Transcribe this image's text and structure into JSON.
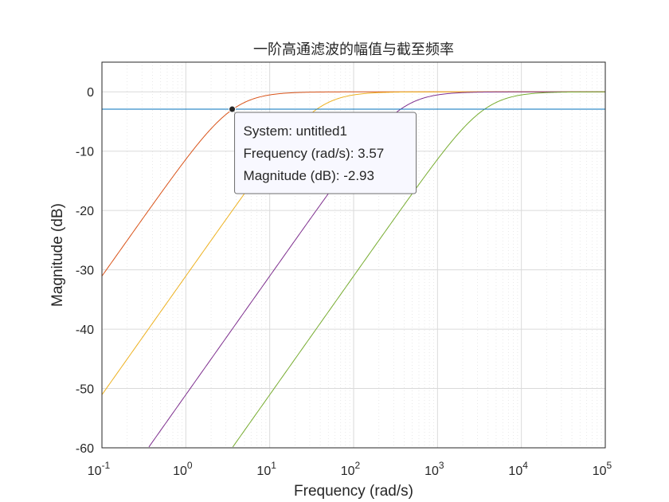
{
  "chart_data": {
    "type": "line",
    "title": "一阶高通滤波的幅值与截至频率",
    "xlabel": "Frequency  (rad/s)",
    "ylabel": "Magnitude (dB)",
    "xscale": "log",
    "xlim": [
      0.1,
      100000
    ],
    "ylim": [
      -60,
      5
    ],
    "x_ticks": [
      {
        "base": "10",
        "exp": "-1",
        "value": 0.1
      },
      {
        "base": "10",
        "exp": "0",
        "value": 1
      },
      {
        "base": "10",
        "exp": "1",
        "value": 10
      },
      {
        "base": "10",
        "exp": "2",
        "value": 100
      },
      {
        "base": "10",
        "exp": "3",
        "value": 1000
      },
      {
        "base": "10",
        "exp": "4",
        "value": 10000
      },
      {
        "base": "10",
        "exp": "5",
        "value": 100000
      }
    ],
    "y_ticks": [
      "0",
      "-10",
      "-20",
      "-30",
      "-40",
      "-50",
      "-60"
    ],
    "grid": true,
    "minor_grid": true,
    "series": [
      {
        "color": "#D95319",
        "cutoff": 3.57
      },
      {
        "color": "#EDB120",
        "cutoff": 35.7
      },
      {
        "color": "#7E2F8E",
        "cutoff": 357
      },
      {
        "color": "#77AC30",
        "cutoff": 3570
      }
    ],
    "reference_line": {
      "y": -2.93,
      "color": "#0072BD"
    },
    "datatip": {
      "x": 3.57,
      "y": -2.93,
      "lines": [
        "System: untitled1",
        "Frequency (rad/s): 3.57",
        "Magnitude (dB): -2.93"
      ]
    }
  }
}
